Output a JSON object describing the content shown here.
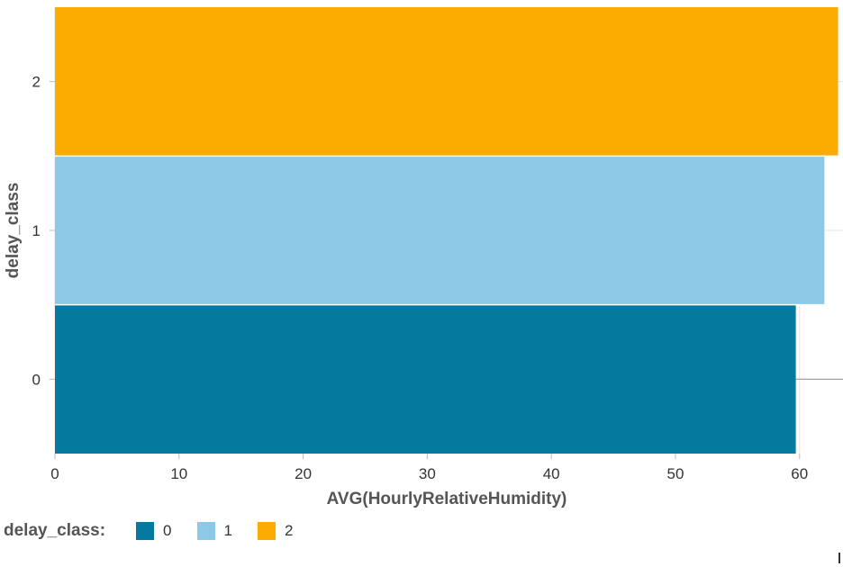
{
  "chart_data": {
    "type": "bar",
    "orientation": "horizontal",
    "categories": [
      "0",
      "1",
      "2"
    ],
    "values": [
      59.7,
      62.0,
      63.1
    ],
    "colors": [
      "#06799f",
      "#8bc9e6",
      "#fcab00"
    ],
    "xlabel": "AVG(HourlyRelativeHumidity)",
    "ylabel": "delay_class",
    "xlim": [
      0,
      63.5
    ],
    "xticks": [
      0,
      10,
      20,
      30,
      40,
      50,
      60
    ],
    "grid": true,
    "legend": {
      "title": "delay_class:",
      "placement": "bottom-left",
      "entries": [
        {
          "label": "0",
          "color": "#06799f"
        },
        {
          "label": "1",
          "color": "#8bc9e6"
        },
        {
          "label": "2",
          "color": "#fcab00"
        }
      ]
    }
  }
}
